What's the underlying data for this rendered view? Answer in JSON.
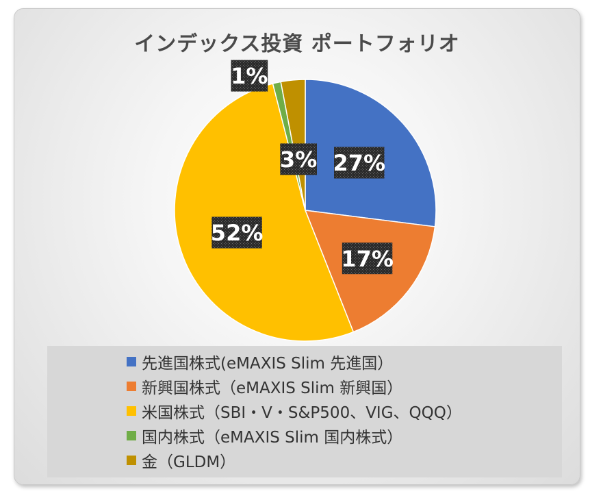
{
  "chart_data": {
    "type": "pie",
    "title": "インデックス投資 ポートフォリオ",
    "categories": [
      "先進国株式(eMAXIS Slim 先進国）",
      "新興国株式（eMAXIS Slim 新興国）",
      "米国株式（SBI・V・S&P500、VIG、QQQ）",
      "国内株式（eMAXIS Slim 国内株式）",
      "金（GLDM）"
    ],
    "values": [
      27,
      17,
      52,
      1,
      3
    ],
    "data_labels": [
      "27%",
      "17%",
      "52%",
      "1%",
      "3%"
    ],
    "colors": [
      "#4472C4",
      "#ED7D31",
      "#FFC000",
      "#70AD47",
      "#BF9000"
    ],
    "legend_position": "bottom"
  }
}
